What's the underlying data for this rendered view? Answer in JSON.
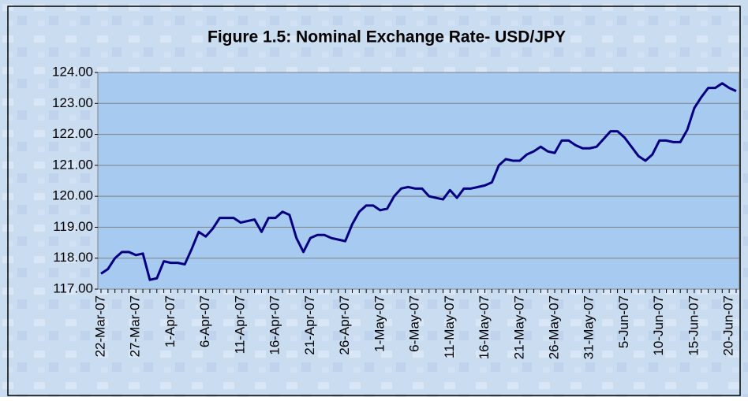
{
  "chart_data": {
    "type": "line",
    "title": "Figure 1.5: Nominal Exchange Rate- USD/JPY",
    "categories": [
      "22-Mar-07",
      null,
      null,
      null,
      null,
      "27-Mar-07",
      null,
      null,
      null,
      null,
      "1-Apr-07",
      null,
      null,
      null,
      null,
      "6-Apr-07",
      null,
      null,
      null,
      null,
      "11-Apr-07",
      null,
      null,
      null,
      null,
      "16-Apr-07",
      null,
      null,
      null,
      null,
      "21-Apr-07",
      null,
      null,
      null,
      null,
      "26-Apr-07",
      null,
      null,
      null,
      null,
      "1-May-07",
      null,
      null,
      null,
      null,
      "6-May-07",
      null,
      null,
      null,
      null,
      "11-May-07",
      null,
      null,
      null,
      null,
      "16-May-07",
      null,
      null,
      null,
      null,
      "21-May-07",
      null,
      null,
      null,
      null,
      "26-May-07",
      null,
      null,
      null,
      null,
      "31-May-07",
      null,
      null,
      null,
      null,
      "5-Jun-07",
      null,
      null,
      null,
      null,
      "10-Jun-07",
      null,
      null,
      null,
      null,
      "15-Jun-07",
      null,
      null,
      null,
      null,
      "20-Jun-07",
      null
    ],
    "values": [
      117.5,
      117.65,
      118.0,
      118.2,
      118.2,
      118.1,
      118.15,
      117.3,
      117.35,
      117.9,
      117.85,
      117.85,
      117.8,
      118.3,
      118.85,
      118.7,
      118.95,
      119.3,
      119.3,
      119.3,
      119.15,
      119.2,
      119.25,
      118.85,
      119.3,
      119.3,
      119.5,
      119.4,
      118.65,
      118.2,
      118.65,
      118.75,
      118.75,
      118.65,
      118.6,
      118.55,
      119.1,
      119.5,
      119.7,
      119.7,
      119.55,
      119.6,
      120.0,
      120.25,
      120.3,
      120.25,
      120.25,
      120.0,
      119.95,
      119.9,
      120.2,
      119.95,
      120.25,
      120.25,
      120.3,
      120.35,
      120.45,
      121.0,
      121.2,
      121.15,
      121.15,
      121.35,
      121.45,
      121.6,
      121.45,
      121.4,
      121.8,
      121.8,
      121.65,
      121.55,
      121.55,
      121.6,
      121.85,
      122.1,
      122.1,
      121.9,
      121.6,
      121.3,
      121.15,
      121.35,
      121.8,
      121.8,
      121.75,
      121.75,
      122.15,
      122.85,
      123.2,
      123.5,
      123.5,
      123.65,
      123.5,
      123.4
    ],
    "color": "#000080",
    "ylim": [
      117,
      124
    ],
    "yticks": [
      {
        "value": 117,
        "label": "117.00"
      },
      {
        "value": 118,
        "label": "118.00"
      },
      {
        "value": 119,
        "label": "119.00"
      },
      {
        "value": 120,
        "label": "120.00"
      },
      {
        "value": 121,
        "label": "121.00"
      },
      {
        "value": 122,
        "label": "122.00"
      },
      {
        "value": 123,
        "label": "123.00"
      },
      {
        "value": 124,
        "label": "124.00"
      }
    ],
    "grid": true
  }
}
